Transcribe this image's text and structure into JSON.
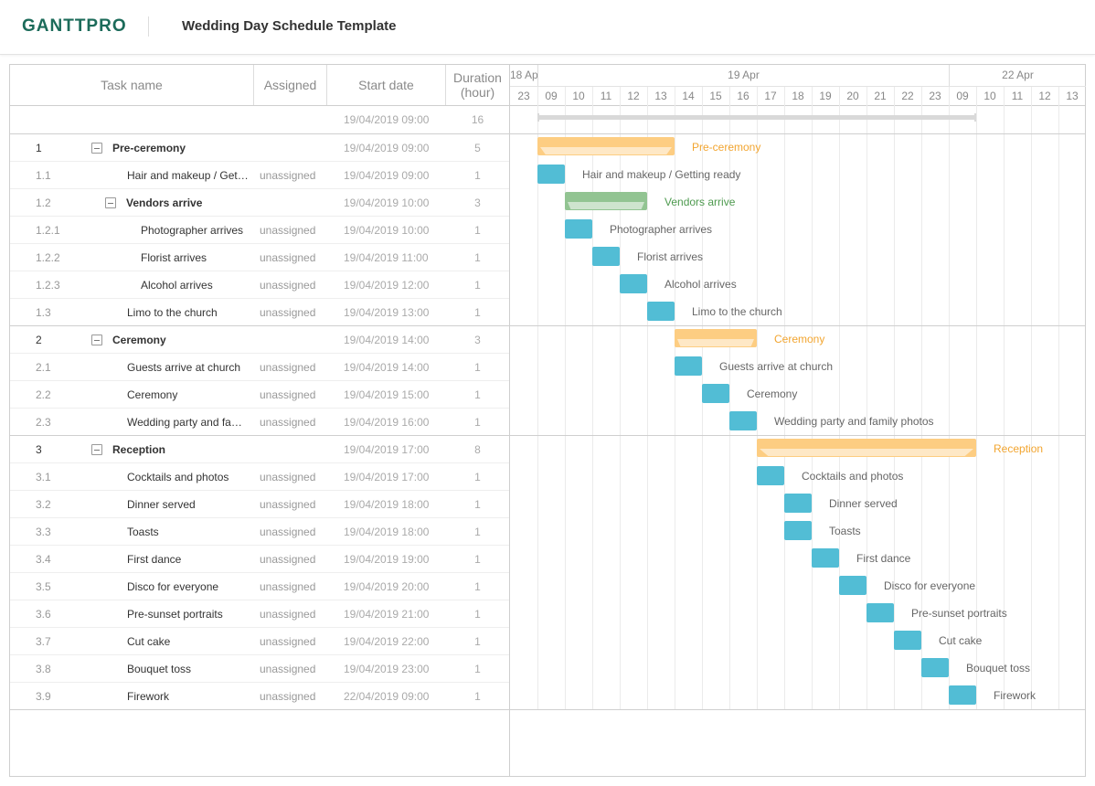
{
  "header": {
    "logo": "GANTTPRO",
    "title": "Wedding Day Schedule Template"
  },
  "columns": {
    "task_name": "Task name",
    "assigned": "Assigned",
    "start_date": "Start date",
    "duration": "Duration (hour)"
  },
  "timeline": [
    {
      "date": "18 Apr",
      "hours": [
        "23"
      ]
    },
    {
      "date": "19 Apr",
      "hours": [
        "09",
        "10",
        "11",
        "12",
        "13",
        "14",
        "15",
        "16",
        "17",
        "18",
        "19",
        "20",
        "21",
        "22",
        "23"
      ]
    },
    {
      "date": "22 Apr",
      "hours": [
        "09",
        "10",
        "11",
        "12",
        "13"
      ]
    }
  ],
  "task_color": "#52bdd5",
  "project": {
    "start": "19/04/2019 09:00",
    "duration": 16,
    "color": "#d9d9d9"
  },
  "tasks": [
    {
      "id": "1",
      "name": "Pre-ceremony",
      "start": "19/04/2019 09:00",
      "duration": 5,
      "color": "#fdcd82",
      "label_color": "#f2a530",
      "children": [
        {
          "id": "1.1",
          "name": "Hair and makeup / Getting ready",
          "assigned": "unassigned",
          "start": "19/04/2019 09:00",
          "duration": 1
        },
        {
          "id": "1.2",
          "name": "Vendors arrive",
          "start": "19/04/2019 10:00",
          "duration": 3,
          "color": "#92c492",
          "label_color": "#4e9a4f",
          "children": [
            {
              "id": "1.2.1",
              "name": "Photographer arrives",
              "assigned": "unassigned",
              "start": "19/04/2019 10:00",
              "duration": 1
            },
            {
              "id": "1.2.2",
              "name": "Florist arrives",
              "assigned": "unassigned",
              "start": "19/04/2019 11:00",
              "duration": 1
            },
            {
              "id": "1.2.3",
              "name": "Alcohol arrives",
              "assigned": "unassigned",
              "start": "19/04/2019 12:00",
              "duration": 1
            }
          ]
        },
        {
          "id": "1.3",
          "name": "Limo to the church",
          "assigned": "unassigned",
          "start": "19/04/2019 13:00",
          "duration": 1
        }
      ]
    },
    {
      "id": "2",
      "name": "Ceremony",
      "start": "19/04/2019 14:00",
      "duration": 3,
      "color": "#fdcd82",
      "label_color": "#f2a530",
      "children": [
        {
          "id": "2.1",
          "name": "Guests arrive at church",
          "assigned": "unassigned",
          "start": "19/04/2019 14:00",
          "duration": 1
        },
        {
          "id": "2.2",
          "name": "Ceremony",
          "assigned": "unassigned",
          "start": "19/04/2019 15:00",
          "duration": 1
        },
        {
          "id": "2.3",
          "name": "Wedding party and family photos",
          "assigned": "unassigned",
          "start": "19/04/2019 16:00",
          "duration": 1
        }
      ]
    },
    {
      "id": "3",
      "name": "Reception",
      "start": "19/04/2019 17:00",
      "duration": 8,
      "color": "#fdcd82",
      "label_color": "#f2a530",
      "children": [
        {
          "id": "3.1",
          "name": "Cocktails and photos",
          "assigned": "unassigned",
          "start": "19/04/2019 17:00",
          "duration": 1
        },
        {
          "id": "3.2",
          "name": "Dinner served",
          "assigned": "unassigned",
          "start": "19/04/2019 18:00",
          "duration": 1
        },
        {
          "id": "3.3",
          "name": "Toasts",
          "assigned": "unassigned",
          "start": "19/04/2019 18:00",
          "duration": 1
        },
        {
          "id": "3.4",
          "name": "First dance",
          "assigned": "unassigned",
          "start": "19/04/2019 19:00",
          "duration": 1
        },
        {
          "id": "3.5",
          "name": "Disco for everyone",
          "assigned": "unassigned",
          "start": "19/04/2019 20:00",
          "duration": 1
        },
        {
          "id": "3.6",
          "name": "Pre-sunset portraits",
          "assigned": "unassigned",
          "start": "19/04/2019 21:00",
          "duration": 1
        },
        {
          "id": "3.7",
          "name": "Cut cake",
          "assigned": "unassigned",
          "start": "19/04/2019 22:00",
          "duration": 1
        },
        {
          "id": "3.8",
          "name": "Bouquet toss",
          "assigned": "unassigned",
          "start": "19/04/2019 23:00",
          "duration": 1
        },
        {
          "id": "3.9",
          "name": "Firework",
          "assigned": "unassigned",
          "start": "22/04/2019 09:00",
          "duration": 1
        }
      ]
    }
  ]
}
